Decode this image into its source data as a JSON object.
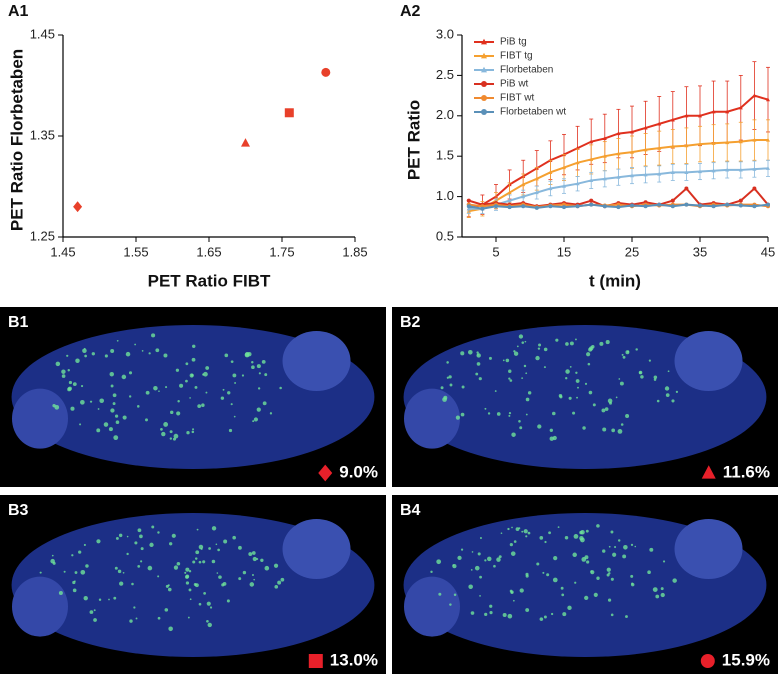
{
  "chart_data": [
    {
      "type": "scatter",
      "label": "A1",
      "x_label": "PET Ratio FIBT",
      "y_label": "PET Ratio Florbetaben",
      "color": "#e8402a",
      "x": [
        1.47,
        1.7,
        1.76,
        1.81
      ],
      "y": [
        1.28,
        1.343,
        1.373,
        1.413
      ],
      "markers": [
        "diamond",
        "triangle",
        "square",
        "circle"
      ],
      "xlim": [
        1.45,
        1.85
      ],
      "xticks": [
        1.45,
        1.55,
        1.65,
        1.75,
        1.85
      ],
      "ylim": [
        1.25,
        1.45
      ],
      "yticks": [
        1.25,
        1.35,
        1.45
      ]
    },
    {
      "type": "line",
      "label": "A2",
      "x_label": "t (min)",
      "y_label": "PET  Ratio",
      "x": [
        1,
        3,
        5,
        7,
        9,
        11,
        13,
        15,
        17,
        19,
        21,
        23,
        25,
        27,
        29,
        31,
        33,
        35,
        37,
        39,
        41,
        43,
        45
      ],
      "xlim": [
        0,
        45
      ],
      "xticks": [
        5,
        15,
        25,
        35,
        45
      ],
      "ylim": [
        0.5,
        3.0
      ],
      "yticks": [
        0.5,
        {
          "value": 1,
          "label": "1.0"
        },
        1.5,
        {
          "value": 2,
          "label": "2.0"
        },
        2.5,
        {
          "value": 3,
          "label": "3.0"
        }
      ],
      "series": [
        {
          "name": "PiB tg",
          "color": "#e0301e",
          "marker": "triangle",
          "values": [
            0.85,
            0.9,
            1.0,
            1.15,
            1.25,
            1.35,
            1.45,
            1.52,
            1.6,
            1.68,
            1.72,
            1.78,
            1.8,
            1.85,
            1.9,
            1.95,
            2.0,
            2.0,
            2.05,
            2.05,
            2.1,
            2.25,
            2.2
          ],
          "errors": [
            0.1,
            0.12,
            0.15,
            0.18,
            0.2,
            0.22,
            0.24,
            0.25,
            0.27,
            0.28,
            0.3,
            0.3,
            0.32,
            0.33,
            0.34,
            0.35,
            0.36,
            0.37,
            0.38,
            0.38,
            0.4,
            0.42,
            0.4
          ]
        },
        {
          "name": "FIBT tg",
          "color": "#f5a030",
          "marker": "triangle",
          "values": [
            0.82,
            0.85,
            0.95,
            1.05,
            1.15,
            1.22,
            1.3,
            1.36,
            1.42,
            1.46,
            1.5,
            1.53,
            1.55,
            1.58,
            1.6,
            1.62,
            1.63,
            1.65,
            1.66,
            1.67,
            1.68,
            1.7,
            1.7
          ],
          "errors": [
            0.08,
            0.09,
            0.1,
            0.12,
            0.13,
            0.14,
            0.15,
            0.16,
            0.17,
            0.18,
            0.18,
            0.19,
            0.2,
            0.2,
            0.21,
            0.21,
            0.22,
            0.22,
            0.23,
            0.23,
            0.24,
            0.25,
            0.25
          ]
        },
        {
          "name": "Florbetaben",
          "color": "#88b8dc",
          "marker": "triangle",
          "values": [
            0.85,
            0.85,
            0.9,
            0.95,
            1.0,
            1.05,
            1.1,
            1.13,
            1.16,
            1.2,
            1.22,
            1.24,
            1.26,
            1.27,
            1.28,
            1.3,
            1.3,
            1.31,
            1.32,
            1.33,
            1.33,
            1.34,
            1.35
          ],
          "errors": [
            0.06,
            0.06,
            0.07,
            0.07,
            0.08,
            0.08,
            0.09,
            0.09,
            0.09,
            0.1,
            0.1,
            0.1,
            0.1,
            0.1,
            0.1,
            0.1,
            0.1,
            0.1,
            0.1,
            0.1,
            0.1,
            0.1,
            0.1
          ]
        },
        {
          "name": "PiB wt",
          "color": "#d83020",
          "marker": "circle",
          "values": [
            0.95,
            0.9,
            0.92,
            0.9,
            0.92,
            0.88,
            0.9,
            0.92,
            0.9,
            0.95,
            0.88,
            0.92,
            0.9,
            0.93,
            0.9,
            0.95,
            1.1,
            0.9,
            0.92,
            0.9,
            0.95,
            1.1,
            0.9
          ]
        },
        {
          "name": "FIBT wt",
          "color": "#f08a30",
          "marker": "circle",
          "values": [
            0.9,
            0.88,
            0.9,
            0.88,
            0.9,
            0.87,
            0.89,
            0.9,
            0.88,
            0.9,
            0.89,
            0.9,
            0.88,
            0.9,
            0.89,
            0.9,
            0.9,
            0.88,
            0.9,
            0.89,
            0.9,
            0.9,
            0.88
          ]
        },
        {
          "name": "Florbetaben wt",
          "color": "#5a90b8",
          "marker": "circle",
          "values": [
            0.88,
            0.85,
            0.88,
            0.87,
            0.88,
            0.86,
            0.88,
            0.87,
            0.88,
            0.9,
            0.88,
            0.87,
            0.89,
            0.88,
            0.9,
            0.88,
            0.9,
            0.89,
            0.88,
            0.9,
            0.89,
            0.88,
            0.9
          ]
        }
      ]
    }
  ],
  "images": [
    {
      "label": "B1",
      "marker": "diamond",
      "text": "9.0%"
    },
    {
      "label": "B2",
      "marker": "triangle",
      "text": "11.6%"
    },
    {
      "label": "B3",
      "marker": "square",
      "text": "13.0%"
    },
    {
      "label": "B4",
      "marker": "circle",
      "text": "15.9%"
    }
  ]
}
